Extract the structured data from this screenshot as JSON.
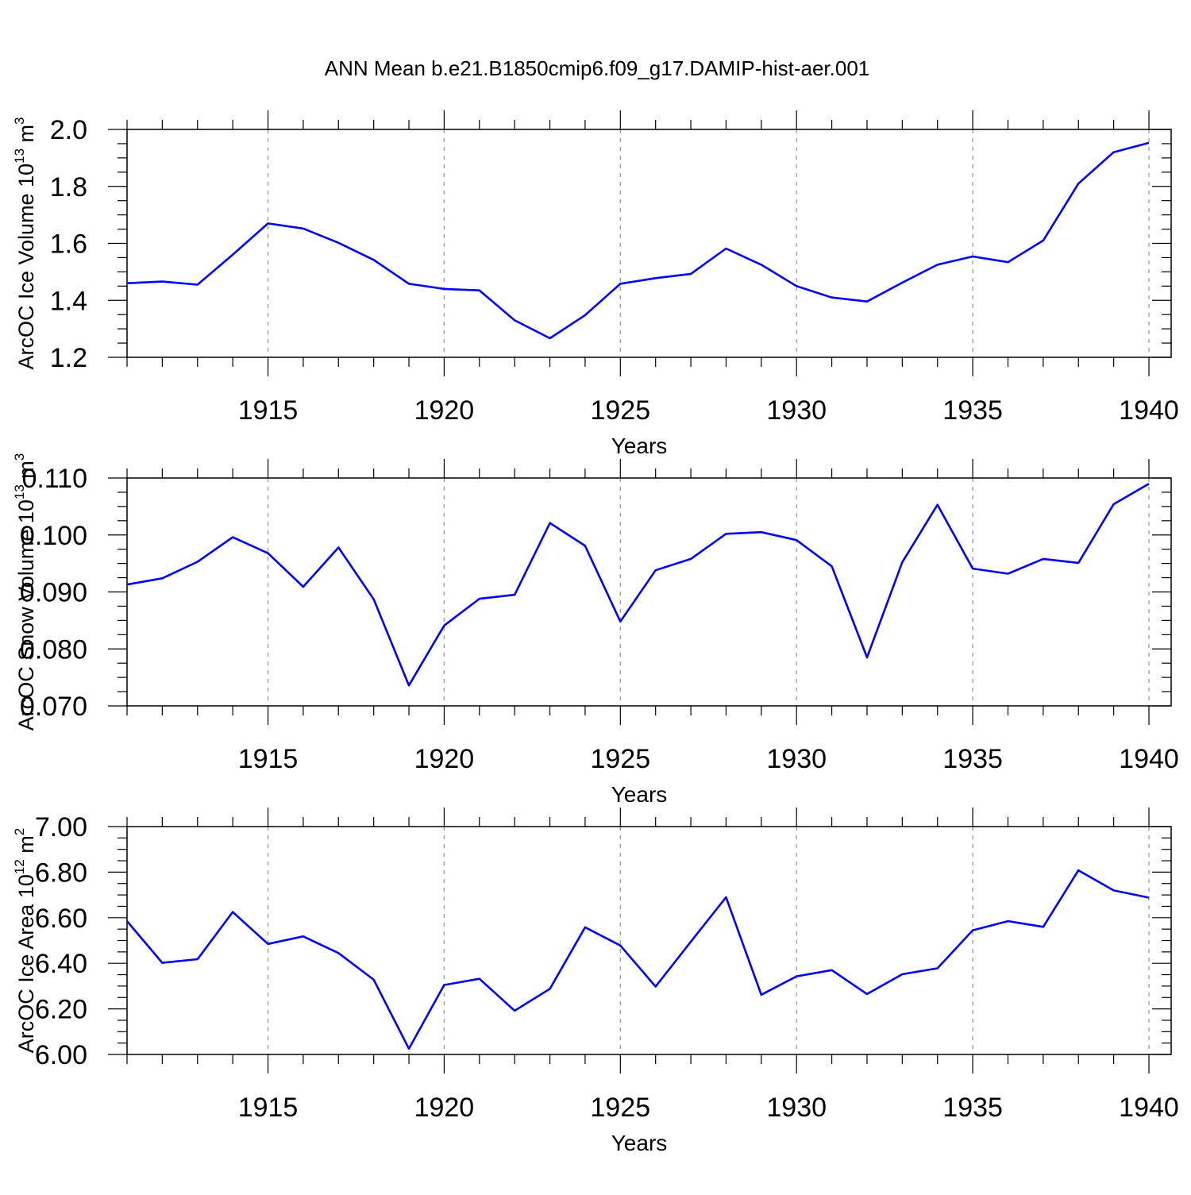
{
  "title": "ANN Mean b.e21.B1850cmip6.f09_g17.DAMIP-hist-aer.001",
  "colors": {
    "line": "#0000ff",
    "axis": "#000000",
    "grid": "#999999"
  },
  "chart_data": [
    {
      "type": "line",
      "xlabel": "Years",
      "ylabel": {
        "text": "ArcOC Ice Volume 10",
        "exp": "13",
        "unit": " m",
        "unit_exp": "3"
      },
      "xlim": [
        1911,
        1940
      ],
      "ylim": [
        1.2,
        2.0
      ],
      "yticks": [
        "1.2",
        "1.4",
        "1.6",
        "1.8",
        "2.0"
      ],
      "xticks": [
        "1915",
        "1920",
        "1925",
        "1930",
        "1935",
        "1940"
      ],
      "grid": "vertical dashed",
      "x": [
        1911,
        1912,
        1913,
        1914,
        1915,
        1916,
        1917,
        1918,
        1919,
        1920,
        1921,
        1922,
        1923,
        1924,
        1925,
        1926,
        1927,
        1928,
        1929,
        1930,
        1931,
        1932,
        1933,
        1934,
        1935,
        1936,
        1937,
        1938,
        1939,
        1940
      ],
      "values": [
        1.46,
        1.466,
        1.455,
        1.56,
        1.67,
        1.652,
        1.602,
        1.542,
        1.458,
        1.44,
        1.435,
        1.33,
        1.267,
        1.348,
        1.458,
        1.478,
        1.493,
        1.582,
        1.525,
        1.45,
        1.41,
        1.396,
        1.462,
        1.525,
        1.554,
        1.534,
        1.61,
        1.81,
        1.92,
        1.953
      ]
    },
    {
      "type": "line",
      "xlabel": "Years",
      "ylabel": {
        "text": "ArcOC Snow Volume 10",
        "exp": "13",
        "unit": " m",
        "unit_exp": "3"
      },
      "xlim": [
        1911,
        1940
      ],
      "ylim": [
        0.07,
        0.11
      ],
      "yticks": [
        "0.070",
        "0.080",
        "0.090",
        "0.100",
        "0.110"
      ],
      "xticks": [
        "1915",
        "1920",
        "1925",
        "1930",
        "1935",
        "1940"
      ],
      "grid": "vertical dashed",
      "x": [
        1911,
        1912,
        1913,
        1914,
        1915,
        1916,
        1917,
        1918,
        1919,
        1920,
        1921,
        1922,
        1923,
        1924,
        1925,
        1926,
        1927,
        1928,
        1929,
        1930,
        1931,
        1932,
        1933,
        1934,
        1935,
        1936,
        1937,
        1938,
        1939,
        1940
      ],
      "values": [
        0.0913,
        0.0924,
        0.0953,
        0.0996,
        0.0968,
        0.0909,
        0.0978,
        0.0887,
        0.0736,
        0.0841,
        0.0888,
        0.0895,
        0.1021,
        0.0981,
        0.0848,
        0.0938,
        0.0958,
        0.1002,
        0.1005,
        0.0991,
        0.0945,
        0.0785,
        0.0952,
        0.1053,
        0.0941,
        0.0932,
        0.0958,
        0.0951,
        0.1054,
        0.109
      ]
    },
    {
      "type": "line",
      "xlabel": "Years",
      "ylabel": {
        "text": "ArcOC Ice Area 10",
        "exp": "12",
        "unit": " m",
        "unit_exp": "2"
      },
      "xlim": [
        1911,
        1940
      ],
      "ylim": [
        6.0,
        7.0
      ],
      "yticks": [
        "6.00",
        "6.20",
        "6.40",
        "6.60",
        "6.80",
        "7.00"
      ],
      "xticks": [
        "1915",
        "1920",
        "1925",
        "1930",
        "1935",
        "1940"
      ],
      "grid": "vertical dashed",
      "x": [
        1911,
        1912,
        1913,
        1914,
        1915,
        1916,
        1917,
        1918,
        1919,
        1920,
        1921,
        1922,
        1923,
        1924,
        1925,
        1926,
        1927,
        1928,
        1929,
        1930,
        1931,
        1932,
        1933,
        1934,
        1935,
        1936,
        1937,
        1938,
        1939,
        1940
      ],
      "values": [
        6.585,
        6.402,
        6.418,
        6.625,
        6.485,
        6.518,
        6.445,
        6.328,
        6.025,
        6.305,
        6.332,
        6.192,
        6.288,
        6.558,
        6.478,
        6.298,
        6.495,
        6.69,
        6.262,
        6.343,
        6.37,
        6.265,
        6.352,
        6.378,
        6.545,
        6.585,
        6.56,
        6.808,
        6.72,
        6.688
      ]
    }
  ]
}
